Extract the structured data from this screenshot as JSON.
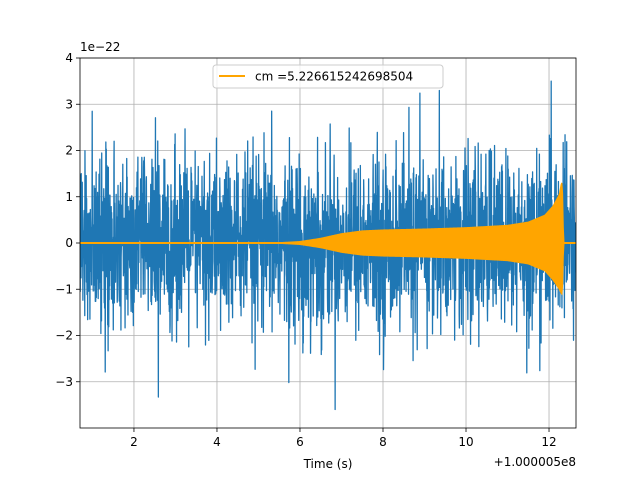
{
  "chart_data": {
    "type": "line",
    "title": "",
    "xlabel": "Time (s)",
    "ylabel": "",
    "x_offset_label": "+1.000005e8",
    "y_scale_label": "1e−22",
    "xlim": [
      0.7,
      12.65
    ],
    "ylim": [
      -4.0,
      4.0
    ],
    "x_ticks": [
      2,
      4,
      6,
      8,
      10,
      12
    ],
    "y_ticks": [
      -3,
      -2,
      -1,
      0,
      1,
      2,
      3,
      4
    ],
    "x_tick_labels": [
      "2",
      "4",
      "6",
      "8",
      "10",
      "12"
    ],
    "y_tick_labels": [
      "−3",
      "−2",
      "−1",
      "0",
      "1",
      "2",
      "3",
      "4"
    ],
    "grid": true,
    "legend_position": "top-center",
    "series": [
      {
        "name": "",
        "color": "#1f77b4",
        "description_kind": "noise",
        "typical_abs_max": 2.0,
        "extreme_max": 3.5,
        "extreme_min": -3.6
      },
      {
        "name": "cm =5.226615242698504",
        "color": "#ffa500",
        "description_kind": "chirp-envelope",
        "envelope": {
          "x": [
            0.7,
            5.0,
            5.6,
            6.0,
            6.5,
            7.0,
            7.5,
            8.0,
            9.0,
            10.0,
            11.0,
            11.5,
            11.9,
            12.1,
            12.25,
            12.3,
            12.32,
            12.35,
            12.65
          ],
          "upper": [
            0.0,
            0.0,
            0.01,
            0.03,
            0.1,
            0.2,
            0.26,
            0.28,
            0.3,
            0.33,
            0.38,
            0.45,
            0.6,
            0.8,
            1.05,
            1.3,
            1.3,
            0.0,
            0.0
          ],
          "lower": [
            0.0,
            0.0,
            -0.01,
            -0.03,
            -0.1,
            -0.2,
            -0.26,
            -0.28,
            -0.3,
            -0.33,
            -0.38,
            -0.45,
            -0.6,
            -0.8,
            -1.0,
            -1.1,
            -1.1,
            0.0,
            0.0
          ]
        }
      }
    ]
  }
}
